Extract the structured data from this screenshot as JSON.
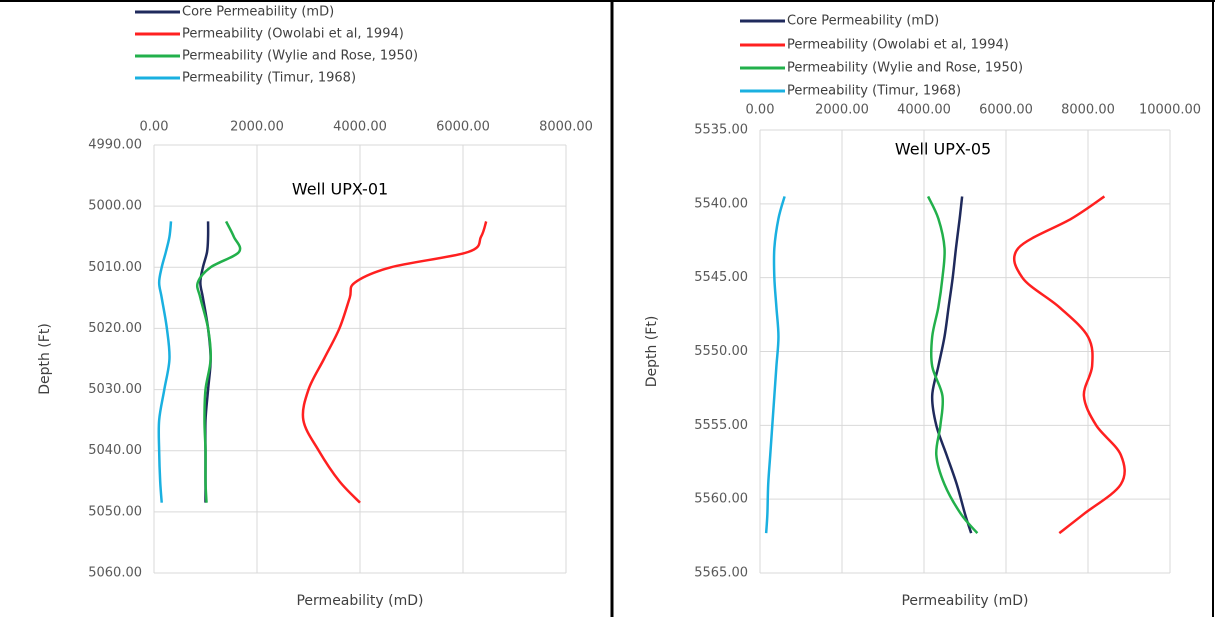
{
  "chart_data": [
    {
      "type": "line",
      "title": "Well UPX-01",
      "x_label": "Permeability (mD)",
      "y_label": "Depth (Ft)",
      "y": [
        5002.5,
        5005,
        5007.5,
        5010,
        5012.5,
        5015,
        5020,
        5025,
        5030,
        5035,
        5040,
        5045,
        5048.5
      ],
      "series": [
        {
          "name": "Core Permeability (mD)",
          "color": "#1f2a5c",
          "values": [
            1050,
            1050,
            1030,
            950,
            900,
            950,
            1050,
            1100,
            1050,
            1000,
            1000,
            1000,
            1000
          ]
        },
        {
          "name": "Permeability (Owolabi et al, 1994)",
          "color": "#ff2020",
          "values": [
            6450,
            6350,
            6100,
            4600,
            3900,
            3800,
            3600,
            3300,
            3000,
            2900,
            3200,
            3600,
            4000
          ]
        },
        {
          "name": "Permeability (Wylie and Rose, 1950)",
          "color": "#22b04b",
          "values": [
            1400,
            1550,
            1650,
            1100,
            850,
            900,
            1050,
            1100,
            1000,
            980,
            1000,
            1000,
            1020
          ]
        },
        {
          "name": "Permeability (Timur, 1968)",
          "color": "#1ab0e0",
          "values": [
            330,
            300,
            230,
            150,
            100,
            150,
            250,
            300,
            200,
            100,
            100,
            120,
            150
          ]
        }
      ],
      "xlim": [
        0,
        8000
      ],
      "xticks": [
        {
          "value": 0,
          "label": "0.00"
        },
        {
          "value": 2000,
          "label": "2000.00"
        },
        {
          "value": 4000,
          "label": "4000.00"
        },
        {
          "value": 6000,
          "label": "6000.00"
        },
        {
          "value": 8000,
          "label": "8000.00"
        }
      ],
      "ylim": [
        4990,
        5060
      ],
      "yticks": [
        {
          "value": 4990,
          "label": "4990.00"
        },
        {
          "value": 5000,
          "label": "5000.00"
        },
        {
          "value": 5010,
          "label": "5010.00"
        },
        {
          "value": 5020,
          "label": "5020.00"
        },
        {
          "value": 5030,
          "label": "5030.00"
        },
        {
          "value": 5040,
          "label": "5040.00"
        },
        {
          "value": 5050,
          "label": "5050.00"
        },
        {
          "value": 5060,
          "label": "5060.00"
        }
      ],
      "y_inverted": true,
      "grid": true,
      "legend": "top"
    },
    {
      "type": "line",
      "title": "Well UPX-05",
      "x_label": "Permeability (mD)",
      "y_label": "Depth (Ft)",
      "y": [
        5539.5,
        5541,
        5543,
        5545,
        5547,
        5549,
        5551,
        5553,
        5555,
        5557,
        5559,
        5561,
        5562.3
      ],
      "series": [
        {
          "name": "Core Permeability (mD)",
          "color": "#1f2a5c",
          "values": [
            4930,
            4870,
            4780,
            4700,
            4600,
            4500,
            4350,
            4200,
            4300,
            4550,
            4800,
            5000,
            5150
          ]
        },
        {
          "name": "Permeability (Owolabi et al, 1994)",
          "color": "#ff2020",
          "values": [
            8400,
            7600,
            6300,
            6400,
            7300,
            8000,
            8100,
            7900,
            8200,
            8800,
            8800,
            7900,
            7300
          ]
        },
        {
          "name": "Permeability (Wylie and Rose, 1950)",
          "color": "#22b04b",
          "values": [
            4100,
            4350,
            4500,
            4450,
            4350,
            4200,
            4200,
            4450,
            4400,
            4300,
            4500,
            4900,
            5300
          ]
        },
        {
          "name": "Permeability (Timur, 1968)",
          "color": "#1ab0e0",
          "values": [
            600,
            450,
            350,
            350,
            400,
            450,
            400,
            350,
            300,
            250,
            200,
            180,
            150
          ]
        }
      ],
      "xlim": [
        0,
        10000
      ],
      "xticks": [
        {
          "value": 0,
          "label": "0.00"
        },
        {
          "value": 2000,
          "label": "2000.00"
        },
        {
          "value": 4000,
          "label": "4000.00"
        },
        {
          "value": 6000,
          "label": "6000.00"
        },
        {
          "value": 8000,
          "label": "8000.00"
        },
        {
          "value": 10000,
          "label": "10000.00"
        }
      ],
      "ylim": [
        5535,
        5565
      ],
      "yticks": [
        {
          "value": 5535,
          "label": "5535.00"
        },
        {
          "value": 5540,
          "label": "5540.00"
        },
        {
          "value": 5545,
          "label": "5545.00"
        },
        {
          "value": 5550,
          "label": "5550.00"
        },
        {
          "value": 5555,
          "label": "5555.00"
        },
        {
          "value": 5560,
          "label": "5560.00"
        },
        {
          "value": 5565,
          "label": "5565.00"
        }
      ],
      "y_inverted": true,
      "grid": true,
      "legend": "top"
    }
  ]
}
